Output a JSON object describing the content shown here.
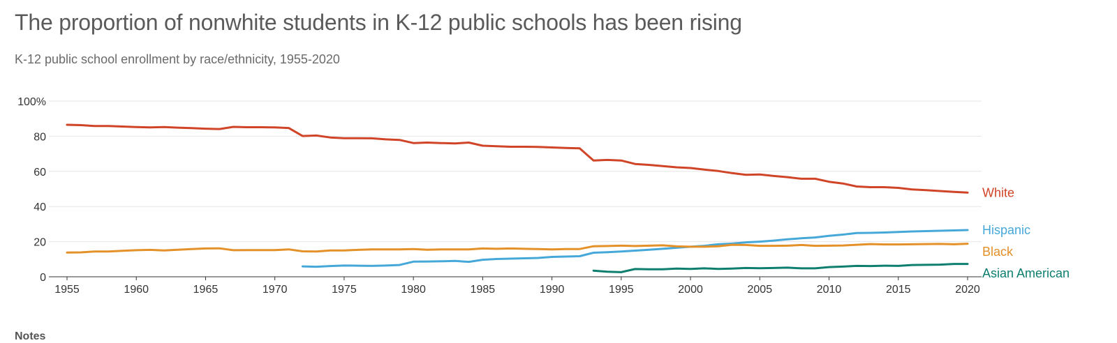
{
  "title": "The proportion of nonwhite students in K-12 public schools has been rising",
  "subtitle": "K-12 public school enrollment by race/ethnicity, 1955-2020",
  "notes_label": "Notes",
  "chart_data": {
    "type": "line",
    "title": "The proportion of nonwhite students in K-12 public schools has been rising",
    "subtitle": "K-12 public school enrollment by race/ethnicity, 1955-2020",
    "xlabel": "",
    "ylabel": "",
    "xlim": [
      1955,
      2020
    ],
    "ylim": [
      0,
      100
    ],
    "grid": true,
    "x_ticks": [
      1955,
      1960,
      1965,
      1970,
      1975,
      1980,
      1985,
      1990,
      1995,
      2000,
      2005,
      2010,
      2015,
      2020
    ],
    "y_ticks": [
      {
        "value": 0,
        "label": "0"
      },
      {
        "value": 20,
        "label": "20"
      },
      {
        "value": 40,
        "label": "40"
      },
      {
        "value": 60,
        "label": "60"
      },
      {
        "value": 80,
        "label": "80"
      },
      {
        "value": 100,
        "label": "100%"
      }
    ],
    "legend": "direct labels at line ends (right)",
    "series": [
      {
        "name": "White",
        "color": "#d04427",
        "x": [
          1955,
          1956,
          1957,
          1958,
          1959,
          1960,
          1961,
          1962,
          1963,
          1964,
          1965,
          1966,
          1967,
          1968,
          1969,
          1970,
          1971,
          1972,
          1973,
          1974,
          1975,
          1976,
          1977,
          1978,
          1979,
          1980,
          1981,
          1982,
          1983,
          1984,
          1985,
          1986,
          1987,
          1988,
          1989,
          1990,
          1991,
          1992,
          1993,
          1994,
          1995,
          1996,
          1997,
          1998,
          1999,
          2000,
          2001,
          2002,
          2003,
          2004,
          2005,
          2006,
          2007,
          2008,
          2009,
          2010,
          2011,
          2012,
          2013,
          2014,
          2015,
          2016,
          2017,
          2018,
          2019,
          2020
        ],
        "values": [
          86.5,
          86.3,
          85.8,
          85.8,
          85.5,
          85.2,
          85.0,
          85.2,
          84.9,
          84.6,
          84.3,
          84.1,
          85.3,
          85.1,
          85.1,
          85.0,
          84.7,
          80.1,
          80.4,
          79.3,
          78.9,
          78.9,
          78.8,
          78.2,
          77.9,
          76.1,
          76.4,
          76.1,
          75.9,
          76.4,
          74.6,
          74.3,
          74.0,
          74.0,
          73.9,
          73.6,
          73.3,
          73.1,
          66.2,
          66.5,
          66.2,
          64.2,
          63.7,
          63.0,
          62.3,
          61.9,
          61.0,
          60.2,
          59.0,
          58.0,
          58.2,
          57.4,
          56.7,
          55.8,
          55.8,
          54.1,
          53.1,
          51.4,
          51.0,
          51.0,
          50.6,
          49.7,
          49.3,
          48.8,
          48.3,
          47.9
        ]
      },
      {
        "name": "Hispanic",
        "color": "#46a8d9",
        "x": [
          1972,
          1973,
          1974,
          1975,
          1976,
          1977,
          1978,
          1979,
          1980,
          1981,
          1982,
          1983,
          1984,
          1985,
          1986,
          1987,
          1988,
          1989,
          1990,
          1991,
          1992,
          1993,
          1994,
          1995,
          1996,
          1997,
          1998,
          1999,
          2000,
          2001,
          2002,
          2003,
          2004,
          2005,
          2006,
          2007,
          2008,
          2009,
          2010,
          2011,
          2012,
          2013,
          2014,
          2015,
          2016,
          2017,
          2018,
          2019,
          2020
        ],
        "values": [
          5.9,
          5.7,
          6.1,
          6.4,
          6.3,
          6.2,
          6.4,
          6.7,
          8.6,
          8.7,
          8.8,
          9.0,
          8.5,
          9.7,
          10.1,
          10.3,
          10.5,
          10.7,
          11.3,
          11.5,
          11.7,
          13.7,
          14.0,
          14.4,
          14.9,
          15.4,
          15.9,
          16.5,
          17.1,
          17.6,
          18.5,
          18.9,
          19.6,
          20.0,
          20.6,
          21.3,
          21.9,
          22.4,
          23.3,
          24.0,
          24.9,
          25.0,
          25.2,
          25.5,
          25.8,
          26.0,
          26.2,
          26.4,
          26.6
        ]
      },
      {
        "name": "Black",
        "color": "#e39128",
        "x": [
          1955,
          1956,
          1957,
          1958,
          1959,
          1960,
          1961,
          1962,
          1963,
          1964,
          1965,
          1966,
          1967,
          1968,
          1969,
          1970,
          1971,
          1972,
          1973,
          1974,
          1975,
          1976,
          1977,
          1978,
          1979,
          1980,
          1981,
          1982,
          1983,
          1984,
          1985,
          1986,
          1987,
          1988,
          1989,
          1990,
          1991,
          1992,
          1993,
          1994,
          1995,
          1996,
          1997,
          1998,
          1999,
          2000,
          2001,
          2002,
          2003,
          2004,
          2005,
          2006,
          2007,
          2008,
          2009,
          2010,
          2011,
          2012,
          2013,
          2014,
          2015,
          2016,
          2017,
          2018,
          2019,
          2020
        ],
        "values": [
          13.8,
          13.9,
          14.4,
          14.4,
          14.8,
          15.1,
          15.3,
          15.0,
          15.4,
          15.8,
          16.1,
          16.2,
          15.1,
          15.2,
          15.2,
          15.2,
          15.6,
          14.5,
          14.4,
          15.0,
          15.0,
          15.3,
          15.6,
          15.6,
          15.6,
          15.8,
          15.4,
          15.6,
          15.6,
          15.6,
          16.1,
          15.9,
          16.1,
          15.9,
          15.8,
          15.6,
          15.8,
          15.8,
          17.4,
          17.5,
          17.7,
          17.5,
          17.7,
          17.9,
          17.3,
          17.1,
          17.1,
          17.4,
          18.2,
          18.1,
          17.6,
          17.6,
          17.7,
          18.1,
          17.6,
          17.7,
          17.8,
          18.2,
          18.6,
          18.4,
          18.4,
          18.5,
          18.6,
          18.7,
          18.5,
          18.8
        ]
      },
      {
        "name": "Asian American",
        "color": "#0e7e6f",
        "x": [
          1993,
          1994,
          1995,
          1996,
          1997,
          1998,
          1999,
          2000,
          2001,
          2002,
          2003,
          2004,
          2005,
          2006,
          2007,
          2008,
          2009,
          2010,
          2011,
          2012,
          2013,
          2014,
          2015,
          2016,
          2017,
          2018,
          2019,
          2020
        ],
        "values": [
          3.5,
          2.9,
          2.6,
          4.4,
          4.3,
          4.3,
          4.7,
          4.5,
          4.8,
          4.5,
          4.7,
          5.0,
          4.9,
          5.0,
          5.2,
          4.8,
          4.8,
          5.5,
          5.8,
          6.2,
          6.1,
          6.3,
          6.2,
          6.7,
          6.8,
          6.9,
          7.3,
          7.3
        ]
      }
    ]
  }
}
